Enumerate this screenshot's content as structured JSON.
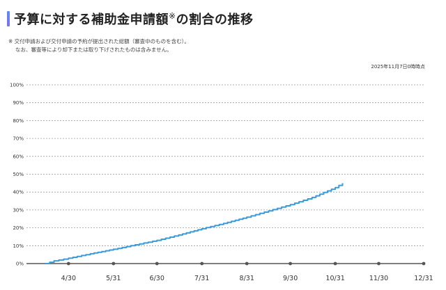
{
  "header": {
    "title_main": "予算に対する補助金申請額",
    "title_mark": "※",
    "title_tail": "の割合の推移"
  },
  "note": {
    "line1": "※ 交付申請および交付申請の予約が提出された総額（審査中のものを含む）。",
    "line2": "なお、審査等により却下または取り下げされたものは含みません。"
  },
  "as_of": "2025年11月7日0時時点",
  "colors": {
    "series": "#3a9bd9",
    "grid": "#999999",
    "axis": "#555555",
    "title_accent": "#6a7ff0"
  },
  "chart_data": {
    "type": "line",
    "title": "予算に対する補助金申請額※の割合の推移",
    "xlabel": "",
    "ylabel": "",
    "x_ticks": [
      "4/30",
      "5/31",
      "6/30",
      "7/31",
      "8/31",
      "9/30",
      "10/31",
      "11/30",
      "12/31"
    ],
    "y_ticks": [
      "0%",
      "10%",
      "20%",
      "30%",
      "40%",
      "50%",
      "60%",
      "70%",
      "80%",
      "90%",
      "100%"
    ],
    "ylim": [
      0,
      100
    ],
    "xlim": [
      "2025-04-01",
      "2025-12-31"
    ],
    "grid": true,
    "series": [
      {
        "name": "",
        "color": "#3a9bd9",
        "points": [
          [
            "2025-04-14",
            0
          ],
          [
            "2025-04-20",
            1.5
          ],
          [
            "2025-04-30",
            3
          ],
          [
            "2025-05-15",
            5.5
          ],
          [
            "2025-05-31",
            8
          ],
          [
            "2025-06-15",
            10.5
          ],
          [
            "2025-06-30",
            13
          ],
          [
            "2025-07-15",
            16
          ],
          [
            "2025-07-31",
            19.5
          ],
          [
            "2025-08-15",
            22.5
          ],
          [
            "2025-08-31",
            26
          ],
          [
            "2025-09-15",
            29.5
          ],
          [
            "2025-09-30",
            33
          ],
          [
            "2025-10-15",
            37
          ],
          [
            "2025-10-31",
            42.5
          ],
          [
            "2025-11-05",
            45
          ]
        ]
      }
    ]
  }
}
